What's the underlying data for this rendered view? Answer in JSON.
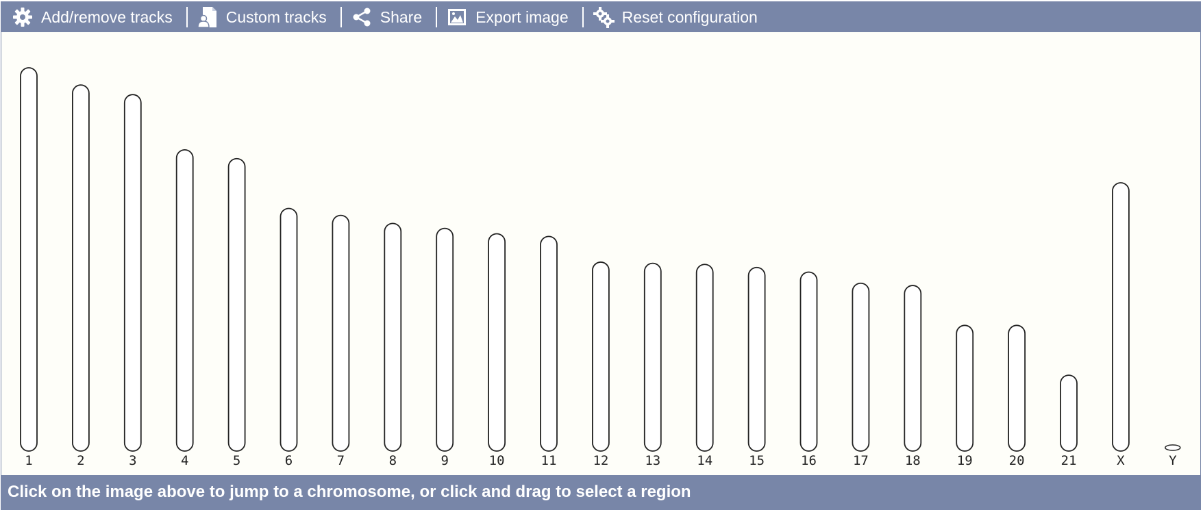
{
  "toolbar": {
    "items": [
      {
        "label": "Add/remove tracks",
        "icon": "gear-icon"
      },
      {
        "label": "Custom tracks",
        "icon": "custom-tracks-icon"
      },
      {
        "label": "Share",
        "icon": "share-icon"
      },
      {
        "label": "Export image",
        "icon": "image-icon"
      },
      {
        "label": "Reset configuration",
        "icon": "reset-gears-icon"
      }
    ]
  },
  "ideogram": {
    "chromosomes": [
      {
        "label": "1",
        "length": 1.0
      },
      {
        "label": "2",
        "length": 0.955
      },
      {
        "label": "3",
        "length": 0.93
      },
      {
        "label": "4",
        "length": 0.786
      },
      {
        "label": "5",
        "length": 0.763
      },
      {
        "label": "6",
        "length": 0.633
      },
      {
        "label": "7",
        "length": 0.615
      },
      {
        "label": "8",
        "length": 0.594
      },
      {
        "label": "9",
        "length": 0.581
      },
      {
        "label": "10",
        "length": 0.567
      },
      {
        "label": "11",
        "length": 0.56
      },
      {
        "label": "12",
        "length": 0.493
      },
      {
        "label": "13",
        "length": 0.49
      },
      {
        "label": "14",
        "length": 0.487
      },
      {
        "label": "15",
        "length": 0.479
      },
      {
        "label": "16",
        "length": 0.467
      },
      {
        "label": "17",
        "length": 0.438
      },
      {
        "label": "18",
        "length": 0.432
      },
      {
        "label": "19",
        "length": 0.328
      },
      {
        "label": "20",
        "length": 0.328
      },
      {
        "label": "21",
        "length": 0.198
      },
      {
        "label": "X",
        "length": 0.7
      },
      {
        "label": "Y",
        "length": 0.012
      }
    ]
  },
  "footer": {
    "text": "Click on the image above to jump to a chromosome, or click and drag to select a region"
  }
}
